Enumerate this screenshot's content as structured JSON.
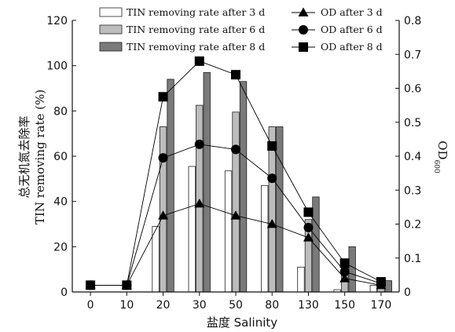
{
  "chart_data": {
    "type": "bar",
    "categories": [
      "0",
      "10",
      "20",
      "30",
      "50",
      "80",
      "130",
      "150",
      "170"
    ],
    "xlabel": "盐度 Salinity",
    "ylabel_zh": "总无机氮去除率",
    "ylabel_en": "TIN removing rate (%)",
    "y2label": "OD",
    "y2label_sub": "600",
    "ylim": [
      0,
      120
    ],
    "y2lim": [
      0,
      0.8
    ],
    "yticks": [
      "0",
      "20",
      "40",
      "60",
      "80",
      "100",
      "120"
    ],
    "y2ticks": [
      "0",
      "0.1",
      "0.2",
      "0.3",
      "0.4",
      "0.5",
      "0.6",
      "0.7",
      "0.8"
    ],
    "legend_position": "top",
    "bar_series": [
      {
        "name": "TIN removing rate after 3 d",
        "color": "#ffffff",
        "values": [
          0,
          0,
          29,
          55.5,
          53.5,
          47,
          11,
          1,
          3
        ]
      },
      {
        "name": "TIN removing rate after 6 d",
        "color": "#bdbdbd",
        "values": [
          0,
          0,
          73,
          82.5,
          79.5,
          73,
          32,
          13,
          4
        ]
      },
      {
        "name": "TIN removing rate after 8 d",
        "color": "#7a7a7a",
        "values": [
          0,
          0,
          94,
          97,
          93,
          73,
          42,
          20,
          5
        ]
      }
    ],
    "line_series": [
      {
        "name": "OD after 3 d",
        "marker": "triangle",
        "values": [
          0.02,
          0.02,
          0.225,
          0.26,
          0.225,
          0.2,
          0.16,
          0.04,
          0.02
        ]
      },
      {
        "name": "OD after 6 d",
        "marker": "circle",
        "values": [
          0.02,
          0.02,
          0.395,
          0.435,
          0.42,
          0.335,
          0.19,
          0.06,
          0.025
        ]
      },
      {
        "name": "OD after 8 d",
        "marker": "square",
        "values": [
          0.02,
          0.02,
          0.575,
          0.68,
          0.64,
          0.43,
          0.235,
          0.085,
          0.03
        ]
      }
    ]
  }
}
